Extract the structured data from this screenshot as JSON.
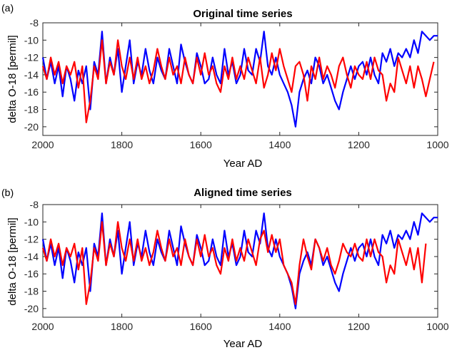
{
  "chart_data": [
    {
      "type": "line",
      "panel_label": "(a)",
      "title": "Original time series",
      "xlabel": "Year AD",
      "ylabel": "delta O-18 [permil]",
      "xlim": [
        2000,
        1000
      ],
      "ylim": [
        -21,
        -8
      ],
      "x_ticks": [
        2000,
        1800,
        1600,
        1400,
        1200,
        1000
      ],
      "y_ticks": [
        -8,
        -10,
        -12,
        -14,
        -16,
        -18,
        -20
      ],
      "grid": false,
      "series": [
        {
          "color": "#0000ff",
          "x": [
            2000,
            1990,
            1980,
            1970,
            1960,
            1950,
            1940,
            1930,
            1920,
            1910,
            1900,
            1890,
            1880,
            1870,
            1860,
            1850,
            1840,
            1830,
            1820,
            1810,
            1800,
            1790,
            1780,
            1770,
            1760,
            1750,
            1740,
            1730,
            1720,
            1710,
            1700,
            1690,
            1680,
            1670,
            1660,
            1650,
            1640,
            1630,
            1620,
            1610,
            1600,
            1590,
            1580,
            1570,
            1560,
            1550,
            1540,
            1530,
            1520,
            1510,
            1500,
            1490,
            1480,
            1470,
            1460,
            1450,
            1440,
            1430,
            1420,
            1410,
            1400,
            1390,
            1380,
            1370,
            1360,
            1350,
            1340,
            1330,
            1320,
            1310,
            1300,
            1290,
            1280,
            1270,
            1260,
            1250,
            1240,
            1230,
            1220,
            1210,
            1200,
            1190,
            1180,
            1170,
            1160,
            1150,
            1140,
            1130,
            1120,
            1110,
            1100,
            1090,
            1080,
            1070,
            1060,
            1050,
            1040,
            1030,
            1020,
            1010,
            1000
          ],
          "y": [
            -12,
            -14.5,
            -12.5,
            -15,
            -13,
            -16.5,
            -13,
            -14.5,
            -17,
            -13.5,
            -15,
            -13,
            -18,
            -12.5,
            -14,
            -9,
            -15,
            -12,
            -14,
            -11,
            -16,
            -13,
            -10,
            -15,
            -12.5,
            -14,
            -11,
            -13.5,
            -15,
            -12,
            -13.5,
            -14.5,
            -11,
            -13,
            -15,
            -10.5,
            -12.5,
            -14,
            -15,
            -11.5,
            -13,
            -15,
            -14.5,
            -12,
            -14,
            -15,
            -11,
            -14,
            -12.5,
            -15,
            -14,
            -11,
            -13.5,
            -14,
            -11,
            -12.5,
            -9,
            -13,
            -14,
            -12,
            -14,
            -15,
            -16,
            -17.5,
            -20,
            -16,
            -14.5,
            -13.5,
            -15,
            -12,
            -13,
            -15,
            -14,
            -15.5,
            -17,
            -18,
            -16,
            -14.5,
            -13,
            -14.5,
            -13,
            -12.5,
            -14,
            -12,
            -14,
            -15,
            -11.5,
            -12.5,
            -11,
            -13,
            -11.5,
            -12,
            -11,
            -12,
            -10,
            -11.5,
            -9,
            -9.5,
            -10,
            -9.5,
            -9.5
          ]
        },
        {
          "color": "#ff0000",
          "x": [
            2000,
            1990,
            1980,
            1970,
            1960,
            1950,
            1940,
            1930,
            1920,
            1910,
            1900,
            1890,
            1880,
            1870,
            1860,
            1850,
            1840,
            1830,
            1820,
            1810,
            1800,
            1790,
            1780,
            1770,
            1760,
            1750,
            1740,
            1730,
            1720,
            1710,
            1700,
            1690,
            1680,
            1670,
            1660,
            1650,
            1640,
            1630,
            1620,
            1610,
            1600,
            1590,
            1580,
            1570,
            1560,
            1550,
            1540,
            1530,
            1520,
            1510,
            1500,
            1490,
            1480,
            1470,
            1460,
            1450,
            1440,
            1430,
            1420,
            1410,
            1400,
            1390,
            1380,
            1370,
            1360,
            1350,
            1340,
            1330,
            1320,
            1310,
            1300,
            1290,
            1280,
            1270,
            1260,
            1250,
            1240,
            1230,
            1220,
            1210,
            1200,
            1190,
            1180,
            1170,
            1160,
            1150,
            1140,
            1130,
            1120,
            1110,
            1100,
            1090,
            1080,
            1070,
            1060,
            1050,
            1040,
            1030,
            1020,
            1010
          ],
          "y": [
            -13,
            -14.5,
            -12,
            -14,
            -12.5,
            -15,
            -13,
            -14,
            -12.5,
            -15.5,
            -13,
            -19.5,
            -17,
            -13,
            -14.5,
            -10,
            -15,
            -12.5,
            -14,
            -10,
            -13,
            -14.5,
            -12,
            -14.5,
            -12,
            -14.5,
            -13,
            -15,
            -13.5,
            -11,
            -13,
            -14.5,
            -12,
            -14,
            -13,
            -15,
            -12,
            -14,
            -15,
            -12,
            -14,
            -11.5,
            -14,
            -13,
            -15,
            -16,
            -13,
            -14.5,
            -12,
            -14.5,
            -13,
            -14.5,
            -12,
            -13.5,
            -15,
            -12,
            -15.5,
            -14,
            -11.5,
            -13.5,
            -11,
            -13,
            -14.5,
            -16,
            -13,
            -12.5,
            -14,
            -17,
            -13,
            -14.5,
            -12,
            -14.5,
            -13,
            -14,
            -15.5,
            -13,
            -12,
            -14,
            -15.5,
            -13,
            -14,
            -14.5,
            -12.5,
            -14.5,
            -12,
            -13.5,
            -14,
            -17,
            -15,
            -16,
            -12,
            -13.5,
            -15,
            -13,
            -15.5,
            -13,
            -14.5,
            -16.5,
            -14.5,
            -12.5
          ]
        }
      ]
    },
    {
      "type": "line",
      "panel_label": "(b)",
      "title": "Aligned time series",
      "xlabel": "Year AD",
      "ylabel": "delta O-18 [permil]",
      "xlim": [
        2000,
        1000
      ],
      "ylim": [
        -21,
        -8
      ],
      "x_ticks": [
        2000,
        1800,
        1600,
        1400,
        1200,
        1000
      ],
      "y_ticks": [
        -8,
        -10,
        -12,
        -14,
        -16,
        -18,
        -20
      ],
      "grid": false,
      "series": [
        {
          "color": "#0000ff",
          "x": [
            2000,
            1990,
            1980,
            1970,
            1960,
            1950,
            1940,
            1930,
            1920,
            1910,
            1900,
            1890,
            1880,
            1870,
            1860,
            1850,
            1840,
            1830,
            1820,
            1810,
            1800,
            1790,
            1780,
            1770,
            1760,
            1750,
            1740,
            1730,
            1720,
            1710,
            1700,
            1690,
            1680,
            1670,
            1660,
            1650,
            1640,
            1630,
            1620,
            1610,
            1600,
            1590,
            1580,
            1570,
            1560,
            1550,
            1540,
            1530,
            1520,
            1510,
            1500,
            1490,
            1480,
            1470,
            1460,
            1450,
            1440,
            1430,
            1420,
            1410,
            1400,
            1390,
            1380,
            1370,
            1360,
            1350,
            1340,
            1330,
            1320,
            1310,
            1300,
            1290,
            1280,
            1270,
            1260,
            1250,
            1240,
            1230,
            1220,
            1210,
            1200,
            1190,
            1180,
            1170,
            1160,
            1150,
            1140,
            1130,
            1120,
            1110,
            1100,
            1090,
            1080,
            1070,
            1060,
            1050,
            1040,
            1030,
            1020,
            1010,
            1000
          ],
          "y": [
            -12,
            -14.5,
            -12.5,
            -15,
            -13,
            -16.5,
            -13,
            -14.5,
            -17,
            -13.5,
            -15,
            -13,
            -18,
            -12.5,
            -14,
            -9,
            -15,
            -12,
            -14,
            -11,
            -16,
            -13,
            -10,
            -15,
            -12.5,
            -14,
            -11,
            -13.5,
            -15,
            -12,
            -13.5,
            -14.5,
            -11,
            -13,
            -15,
            -10.5,
            -12.5,
            -14,
            -15,
            -11.5,
            -13,
            -15,
            -14.5,
            -12,
            -14,
            -15,
            -11,
            -14,
            -12.5,
            -15,
            -14,
            -11,
            -13.5,
            -14,
            -11,
            -12.5,
            -9,
            -13,
            -14,
            -12,
            -14,
            -15,
            -16,
            -17.5,
            -20,
            -16,
            -14.5,
            -13.5,
            -15,
            -12,
            -13,
            -15,
            -14,
            -15.5,
            -17,
            -18,
            -16,
            -14.5,
            -13,
            -14.5,
            -13,
            -12.5,
            -14,
            -12,
            -14,
            -15,
            -11.5,
            -12.5,
            -11,
            -13,
            -11.5,
            -12,
            -11,
            -12,
            -10,
            -11.5,
            -9,
            -9.5,
            -10,
            -9.5,
            -9.5
          ]
        },
        {
          "color": "#ff0000",
          "x": [
            2000,
            1990,
            1980,
            1970,
            1960,
            1950,
            1940,
            1930,
            1920,
            1910,
            1900,
            1890,
            1880,
            1870,
            1860,
            1850,
            1840,
            1830,
            1820,
            1810,
            1800,
            1790,
            1780,
            1770,
            1760,
            1750,
            1740,
            1730,
            1720,
            1710,
            1700,
            1690,
            1680,
            1670,
            1660,
            1650,
            1640,
            1630,
            1620,
            1610,
            1600,
            1590,
            1580,
            1570,
            1560,
            1550,
            1540,
            1530,
            1520,
            1510,
            1500,
            1490,
            1480,
            1470,
            1460,
            1450,
            1440,
            1430,
            1420,
            1410,
            1400,
            1390,
            1380,
            1370,
            1360,
            1350,
            1340,
            1330,
            1320,
            1310,
            1300,
            1290,
            1280,
            1270,
            1260,
            1250,
            1240,
            1230,
            1220,
            1210,
            1200,
            1190,
            1180,
            1170,
            1160,
            1150,
            1140,
            1130,
            1120,
            1110,
            1100,
            1090,
            1080,
            1070,
            1060,
            1050,
            1040,
            1030
          ],
          "y": [
            -13,
            -14.5,
            -12,
            -14,
            -12.5,
            -15,
            -13,
            -14,
            -12.5,
            -15.5,
            -13,
            -19.5,
            -17,
            -13,
            -14.5,
            -10,
            -15,
            -12.5,
            -14,
            -10,
            -13,
            -14.5,
            -12,
            -14.5,
            -12,
            -14.5,
            -13,
            -15,
            -13.5,
            -11,
            -13,
            -14.5,
            -12,
            -14,
            -13,
            -15,
            -12,
            -14,
            -15,
            -12,
            -14,
            -11.5,
            -14,
            -13,
            -15,
            -16,
            -13,
            -14.5,
            -12,
            -14.5,
            -13,
            -14.5,
            -12,
            -13.5,
            -15,
            -12,
            -11,
            -13.5,
            -11.5,
            -13.5,
            -12,
            -15,
            -16,
            -17,
            -19.5,
            -15,
            -12,
            -14,
            -15.5,
            -12,
            -13,
            -14.5,
            -13,
            -15,
            -16,
            -14.5,
            -12.5,
            -13.5,
            -14,
            -12.5,
            -14,
            -14.5,
            -12,
            -14,
            -12,
            -13.5,
            -14,
            -17,
            -15,
            -16,
            -12,
            -13.5,
            -15,
            -13,
            -15.5,
            -13,
            -17,
            -12.5
          ]
        }
      ]
    }
  ]
}
